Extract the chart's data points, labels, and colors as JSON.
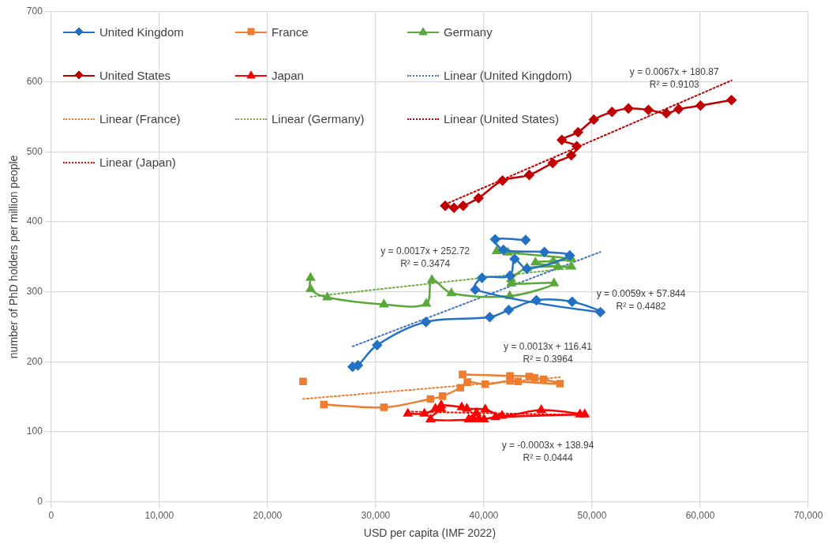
{
  "chart_data": {
    "type": "line",
    "xlabel": "USD per capita (IMF 2022)",
    "ylabel": "number of PhD holders per million people",
    "xlim": [
      0,
      70000
    ],
    "xticks": [
      0,
      {
        "value": 10000,
        "label": "10,000"
      },
      {
        "value": 20000,
        "label": "20,000"
      },
      {
        "value": 30000,
        "label": "30,000"
      },
      {
        "value": 40000,
        "label": "40,000"
      },
      {
        "value": 50000,
        "label": "50,000"
      },
      {
        "value": 60000,
        "label": "60,000"
      },
      {
        "value": 70000,
        "label": "70,000"
      }
    ],
    "ylim": [
      0,
      700
    ],
    "yticks": [
      0,
      100,
      200,
      300,
      400,
      500,
      600,
      700
    ],
    "grid": true,
    "legend": "top left",
    "series": [
      {
        "name": "United Kingdom",
        "color": "#2271c4",
        "marker": "diamond",
        "x": [
          27870,
          28360,
          30140,
          34650,
          40550,
          42300,
          44860,
          48170,
          50780,
          39200,
          39830,
          42420,
          42840,
          43980,
          47950,
          45600,
          41810,
          41050,
          43860
        ],
        "values": [
          193,
          195,
          224,
          257,
          264,
          274,
          288,
          286,
          271,
          303,
          320,
          323,
          347,
          333,
          352,
          357,
          360,
          375,
          374
        ]
      },
      {
        "name": "France",
        "color": "#ed7d31",
        "marker": "square",
        "x": [
          25210,
          30760,
          35070,
          36180,
          37840,
          38480,
          40130,
          42420,
          43160,
          47040,
          45510,
          44690,
          44200,
          42420,
          38030
        ],
        "values": [
          139,
          135,
          147,
          151,
          163,
          171,
          168,
          173,
          172,
          169,
          175,
          177,
          179,
          180,
          182
        ]
      },
      {
        "type": "scatter",
        "color": "#ed7d31",
        "marker": "square",
        "x": [
          23290
        ],
        "values": [
          172
        ]
      },
      {
        "name": "Germany",
        "color": "#5aa83c",
        "marker": "triangle",
        "x": [
          23980,
          23980,
          25530,
          30760,
          34680,
          35200,
          37000,
          42400,
          46490,
          42530,
          42530,
          44000,
          48100,
          46860,
          44770,
          46420,
          48100,
          42230,
          41190
        ],
        "values": [
          320,
          304,
          292,
          282,
          283,
          317,
          298,
          294,
          312,
          312,
          318,
          334,
          336,
          336,
          342,
          344,
          347,
          356,
          358
        ]
      },
      {
        "name": "United States",
        "color": "#c00000",
        "marker": "diamond",
        "x": [
          36430,
          37240,
          38090,
          39510,
          41730,
          44200,
          46370,
          48080,
          48590,
          47210,
          48710,
          50170,
          51850,
          53370,
          55220,
          56880,
          58010,
          60030,
          62900
        ],
        "values": [
          423,
          420,
          423,
          434,
          459,
          467,
          484,
          495,
          508,
          517,
          528,
          546,
          557,
          562,
          560,
          555,
          561,
          566,
          574
        ]
      },
      {
        "name": "Japan",
        "color": "#ff0000",
        "marker": "triangle",
        "x": [
          32980,
          34510,
          35520,
          36060,
          37960,
          38430,
          40130,
          41680,
          45310,
          49330,
          48890,
          41070,
          39560,
          39320,
          38600,
          39090,
          40010,
          35070,
          36060
        ],
        "values": [
          126,
          126,
          133,
          138,
          135,
          133,
          132,
          123,
          131,
          125,
          125,
          121,
          118,
          127,
          118,
          118,
          118,
          118,
          133
        ]
      },
      {
        "name": "Linear (United Kingdom)",
        "color": "#4472c4",
        "marker": "none",
        "line_style": "dotted",
        "x": [
          27870,
          50780
        ],
        "values": [
          222,
          357
        ]
      },
      {
        "name": "Linear (France)",
        "color": "#ed7d31",
        "marker": "none",
        "line_style": "dotted",
        "x": [
          23290,
          47040
        ],
        "values": [
          147,
          178
        ]
      },
      {
        "name": "Linear (Germany)",
        "color": "#70ad47",
        "marker": "none",
        "line_style": "dotted",
        "x": [
          23980,
          48100
        ],
        "values": [
          293,
          334
        ]
      },
      {
        "name": "Linear (United States)",
        "color": "#c00000",
        "marker": "none",
        "line_style": "dotted",
        "x": [
          36430,
          62900
        ],
        "values": [
          425,
          602
        ]
      },
      {
        "name": "Linear (Japan)",
        "color": "#ff0000",
        "marker": "none",
        "line_style": "dotted",
        "x": [
          32980,
          49330
        ],
        "values": [
          129,
          124
        ]
      }
    ],
    "annotations": [
      "y = 0.0067x + 180.87\nR² = 0.9103",
      "y = 0.0017x + 252.72\nR² = 0.3474",
      "y = 0.0059x + 57.844\nR² = 0.4482",
      "y = 0.0013x + 116.41\nR² = 0.3964",
      "y = -0.0003x + 138.94\nR² = 0.0444"
    ]
  }
}
